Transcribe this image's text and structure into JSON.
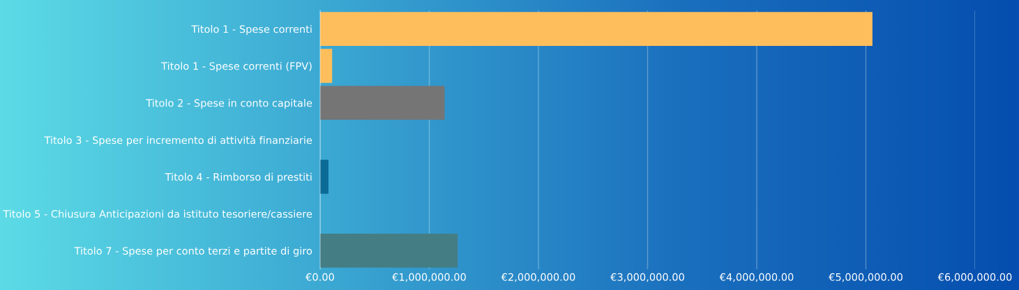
{
  "chart_data": {
    "type": "bar",
    "orientation": "horizontal",
    "categories": [
      "Titolo 1 - Spese correnti",
      "Titolo 1 - Spese correnti (FPV)",
      "Titolo 2 - Spese in conto capitale",
      "Titolo 3 - Spese per incremento di attività finanziarie",
      "Titolo 4 - Rimborso di prestiti",
      "Titolo 5 - Chiusura Anticipazioni da istituto tesoriere/cassiere",
      "Titolo 7 - Spese per conto terzi e partite di giro"
    ],
    "values": [
      5060000,
      110000,
      1140000,
      0,
      76000,
      0,
      1260000
    ],
    "colors": [
      "#ffbe5c",
      "#ffbe5c",
      "#757575",
      "#ffbe5c",
      "#0b6b96",
      "#ffbe5c",
      "#457d84"
    ],
    "xlim": [
      0,
      6000000
    ],
    "xticks": [
      {
        "value": 0,
        "label": "€0.00"
      },
      {
        "value": 1000000,
        "label": "€1,000,000.00"
      },
      {
        "value": 2000000,
        "label": "€2,000,000.00"
      },
      {
        "value": 3000000,
        "label": "€3,000,000.00"
      },
      {
        "value": 4000000,
        "label": "€4,000,000.00"
      },
      {
        "value": 5000000,
        "label": "€5,000,000.00"
      },
      {
        "value": 6000000,
        "label": "€6,000,000.00"
      }
    ],
    "grid": "x",
    "legend": false
  }
}
